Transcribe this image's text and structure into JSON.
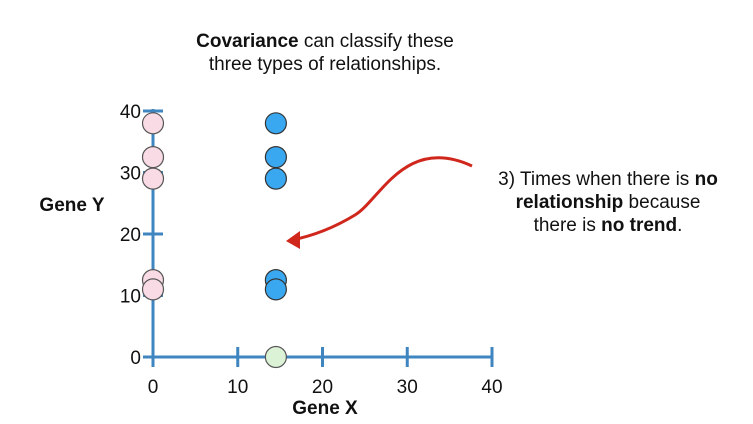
{
  "title": {
    "bold": "Covariance",
    "rest_line1": " can classify these",
    "line2": "three types of relationships."
  },
  "annotation": {
    "prefix": "3) Times when there is ",
    "bold1": "no",
    "bold2": "relationship",
    "mid": " because",
    "line3_prefix": "there is ",
    "bold3": "no trend",
    "suffix": "."
  },
  "chart_data": {
    "type": "scatter",
    "xlabel": "Gene X",
    "ylabel": "Gene Y",
    "xlim": [
      0,
      40
    ],
    "ylim": [
      0,
      40
    ],
    "xticks": [
      0,
      10,
      20,
      30,
      40
    ],
    "yticks": [
      0,
      10,
      20,
      30,
      40
    ],
    "series": [
      {
        "color": "#f9dbe6",
        "stroke": "#555555",
        "points": [
          [
            0,
            38
          ],
          [
            0,
            32.5
          ],
          [
            0,
            29
          ],
          [
            0,
            12.5
          ],
          [
            0,
            11
          ]
        ]
      },
      {
        "color": "#3aa8f0",
        "stroke": "#333333",
        "points": [
          [
            14.5,
            38
          ],
          [
            14.5,
            32.5
          ],
          [
            14.5,
            29
          ],
          [
            14.5,
            12.5
          ],
          [
            14.5,
            11
          ]
        ]
      },
      {
        "color": "#dcf2d6",
        "stroke": "#555555",
        "points": [
          [
            14.5,
            0
          ]
        ]
      }
    ],
    "axis_color": "#3f86c0",
    "arrow_color": "#d0271d"
  }
}
